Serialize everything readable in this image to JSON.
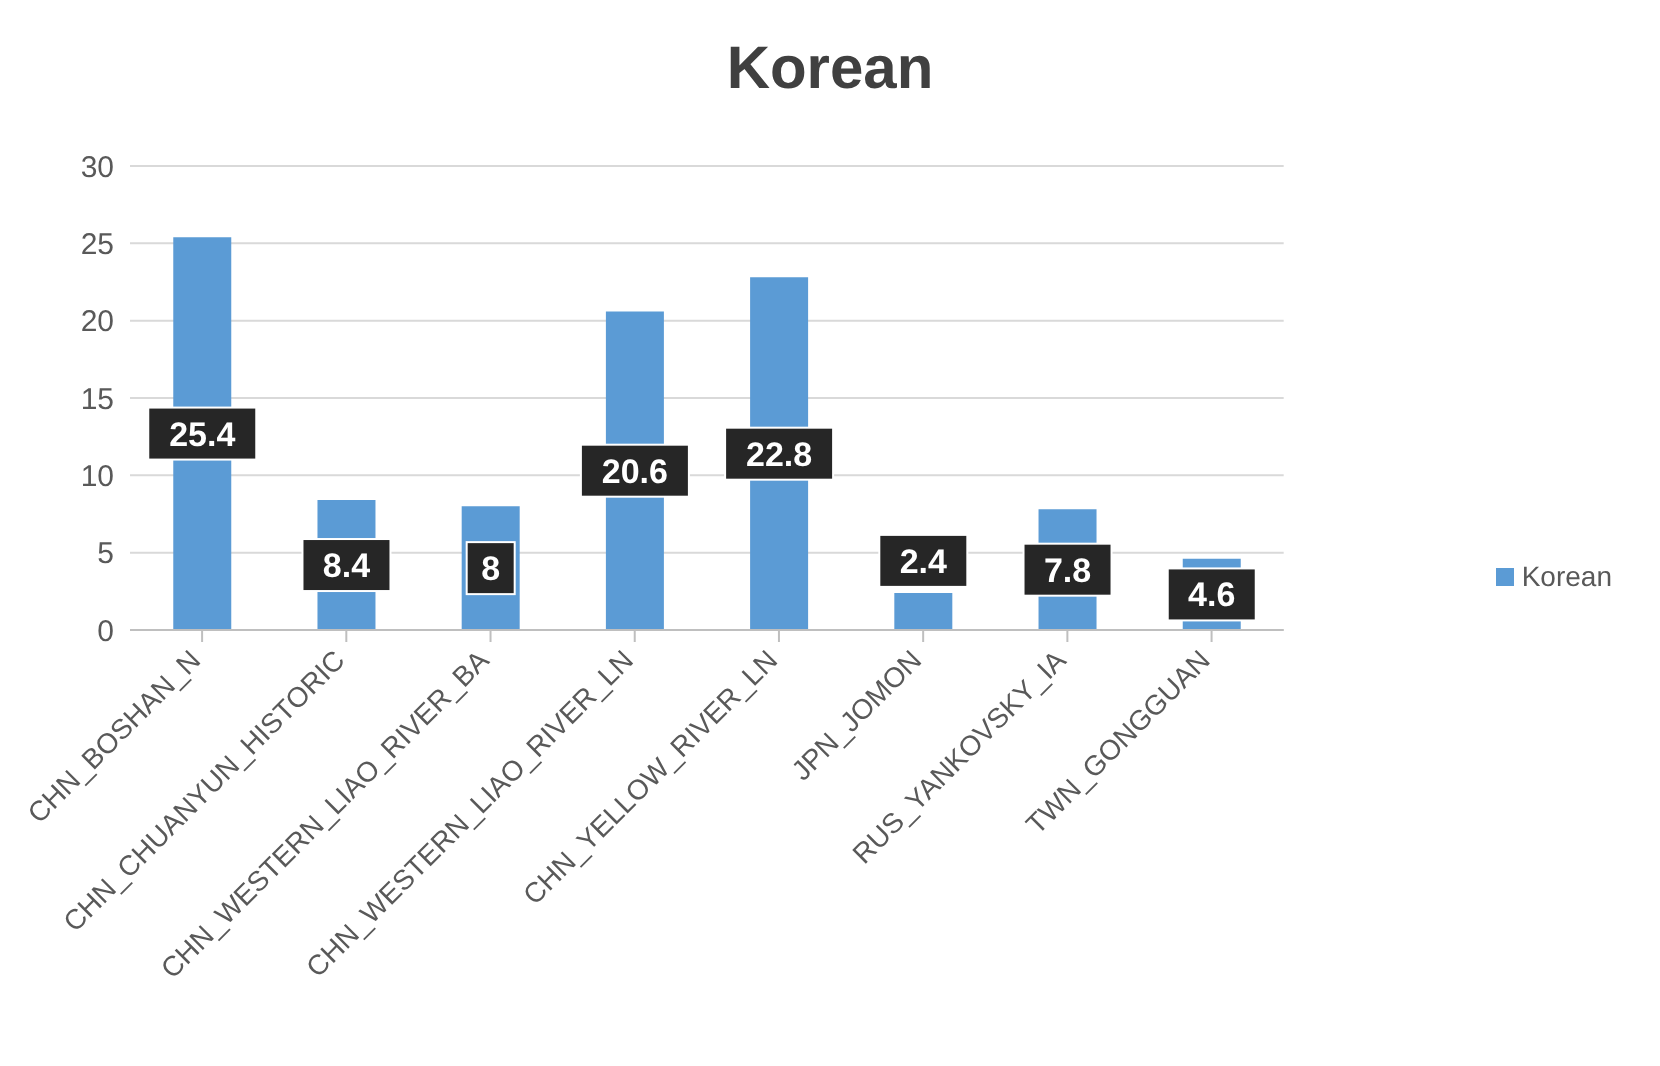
{
  "chart_data": {
    "type": "bar",
    "title": "Korean",
    "categories": [
      "CHN_BOSHAN_N",
      "CHN_CHUANYUN_HISTORIC",
      "CHN_WESTERN_LIAO_RIVER_BA",
      "CHN_WESTERN_LIAO_RIVER_LN",
      "CHN_YELLOW_RIVER_LN",
      "JPN_JOMON",
      "RUS_YANKOVSKY_IA",
      "TWN_GONGGUAN"
    ],
    "series": [
      {
        "name": "Korean",
        "color": "#5b9bd5",
        "values": [
          25.4,
          8.4,
          8,
          20.6,
          22.8,
          2.4,
          7.8,
          4.6
        ]
      }
    ],
    "ylim": [
      0,
      30
    ],
    "yticks": [
      0,
      5,
      10,
      15,
      20,
      25,
      30
    ],
    "grid": "y",
    "legend": "right",
    "data_labels": true
  }
}
